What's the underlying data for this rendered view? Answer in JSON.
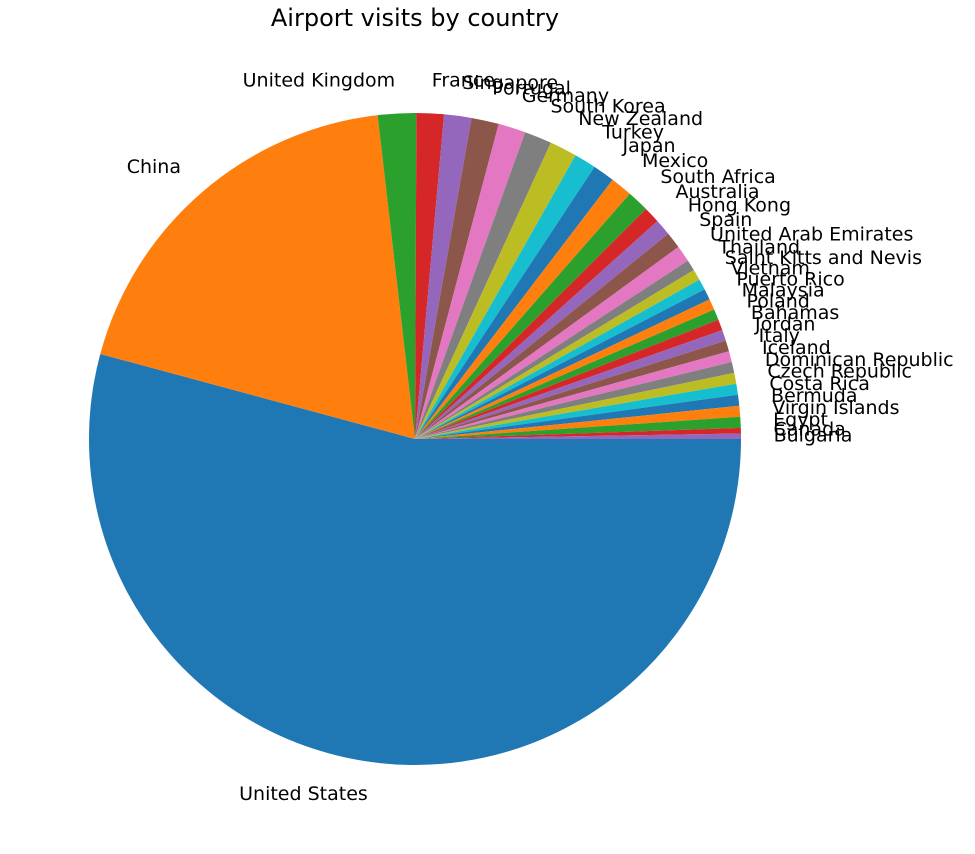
{
  "chart_data": {
    "type": "pie",
    "title": "Airport visits by country",
    "categories": [
      "United States",
      "China",
      "United Kingdom",
      "France",
      "Singapore",
      "Portugal",
      "Germany",
      "South Korea",
      "New Zealand",
      "Turkey",
      "Japan",
      "Mexico",
      "South Africa",
      "Australia",
      "Hong Kong",
      "Spain",
      "United Arab Emirates",
      "Thailand",
      "Saint Kitts and Nevis",
      "Vietnam",
      "Puerto Rico",
      "Malaysia",
      "Poland",
      "Bahamas",
      "Jordan",
      "Italy",
      "Iceland",
      "Dominican Republic",
      "Czech Republic",
      "Costa Rica",
      "Bermuda",
      "Virgin Islands",
      "Egypt",
      "Canada",
      "Bulgaria"
    ],
    "values": [
      200,
      70,
      7,
      5,
      5,
      5,
      5,
      5,
      5,
      4,
      4,
      4,
      4,
      3,
      3,
      3,
      3,
      2,
      2,
      2,
      2,
      2,
      2,
      2,
      2,
      2,
      2,
      2,
      2,
      2,
      2,
      2,
      2,
      1,
      1
    ],
    "colors": [
      "#1f77b4",
      "#ff7f0e",
      "#2ca02c",
      "#d62728",
      "#9467bd",
      "#8c564b",
      "#e377c2",
      "#7f7f7f",
      "#bcbd22",
      "#17becf"
    ],
    "start_angle": "0° (3 o'clock)",
    "direction": "clockwise",
    "legend": "none"
  }
}
